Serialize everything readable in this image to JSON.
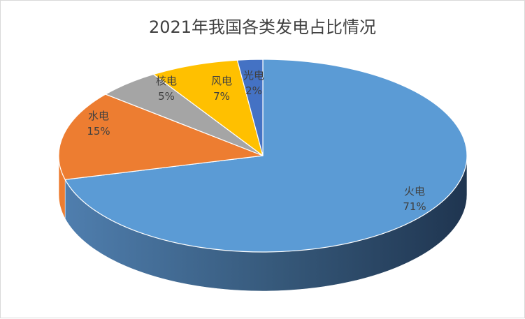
{
  "chart_data": {
    "type": "pie",
    "title": "2021年我国各类发电占比情况",
    "slices": [
      {
        "label": "火电",
        "value": 71,
        "pct_label": "71%",
        "color": "#5b9bd5"
      },
      {
        "label": "水电",
        "value": 15,
        "pct_label": "15%",
        "color": "#ed7d31"
      },
      {
        "label": "核电",
        "value": 5,
        "pct_label": "5%",
        "color": "#a5a5a5"
      },
      {
        "label": "风电",
        "value": 7,
        "pct_label": "7%",
        "color": "#ffc000"
      },
      {
        "label": "光电",
        "value": 2,
        "pct_label": "2%",
        "color": "#4472c4"
      }
    ],
    "legend": "none",
    "style": "3d-pie"
  }
}
